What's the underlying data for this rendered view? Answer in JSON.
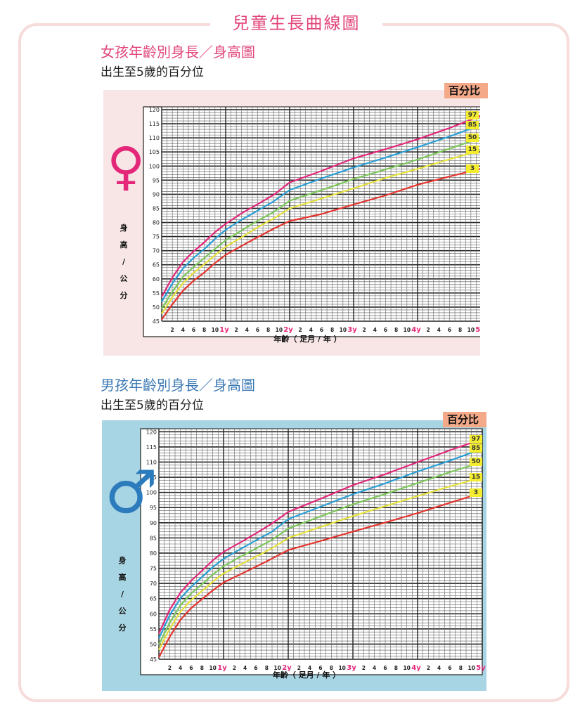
{
  "page_title": "兒童生長曲線圖",
  "charts": [
    {
      "id": "girls",
      "title": "女孩年齡別身長／身高圖",
      "subtitle": "出生至5歲的百分位",
      "sex_symbol": "♀",
      "ylabel": "身高／公分",
      "xlabel": "年齡（ 足月 / 年 ）",
      "percentile_header": "百分比",
      "colors": {
        "panel_bg": "#f8e6e6",
        "header_bg": "#f4a989",
        "symbol": "#e3287a",
        "title": "#e2467a"
      }
    },
    {
      "id": "boys",
      "title": "男孩年齡別身長／身高圖",
      "subtitle": "出生至5歲的百分位",
      "sex_symbol": "♂",
      "ylabel": "身高／公分",
      "xlabel": "年齡（ 足月 / 年 ）",
      "percentile_header": "百分比",
      "colors": {
        "panel_bg": "#a8d5e3",
        "header_bg": "#f4a989",
        "symbol": "#2b7bbd",
        "title": "#3a78b4"
      }
    }
  ],
  "chart_data": [
    {
      "type": "line",
      "title": "女孩年齡別身長／身高圖",
      "xlabel": "年齡（ 足月 / 年 ）",
      "ylabel": "身高／公分",
      "xlim": [
        0,
        60
      ],
      "ylim": [
        45,
        121
      ],
      "y_ticks": [
        45,
        50,
        55,
        60,
        65,
        70,
        75,
        80,
        85,
        90,
        95,
        100,
        105,
        110,
        115,
        120
      ],
      "x_tick_labels": [
        "2",
        "4",
        "6",
        "8",
        "10",
        "1y",
        "2",
        "4",
        "6",
        "8",
        "10",
        "2y",
        "2",
        "4",
        "6",
        "8",
        "10",
        "3y",
        "2",
        "4",
        "6",
        "8",
        "10",
        "4y",
        "2",
        "4",
        "6",
        "8",
        "10",
        "5y"
      ],
      "x": [
        0,
        2,
        4,
        6,
        8,
        10,
        12,
        15,
        18,
        21,
        24,
        30,
        36,
        42,
        48,
        54,
        60
      ],
      "series": [
        {
          "name": "97",
          "color": "#e3287a",
          "values": [
            53.7,
            60.5,
            66.0,
            69.8,
            73.0,
            76.6,
            79.5,
            83.3,
            86.5,
            89.8,
            94.2,
            98.3,
            102.7,
            106.0,
            109.5,
            113.5,
            117.9
          ]
        },
        {
          "name": "85",
          "color": "#2a9fd6",
          "values": [
            51.9,
            58.4,
            63.7,
            67.5,
            70.6,
            74.2,
            77.4,
            81.0,
            84.2,
            87.5,
            91.5,
            95.6,
            99.5,
            103.0,
            106.7,
            110.5,
            114.6
          ]
        },
        {
          "name": "50",
          "color": "#7cc75a",
          "values": [
            49.4,
            55.5,
            60.7,
            64.3,
            67.4,
            70.7,
            73.7,
            77.2,
            80.6,
            83.7,
            87.7,
            91.5,
            95.4,
            98.8,
            102.3,
            106.2,
            110.1
          ]
        },
        {
          "name": "15",
          "color": "#e6e23c",
          "values": [
            47.7,
            53.5,
            58.5,
            62.2,
            65.2,
            68.4,
            71.4,
            74.8,
            78.3,
            81.4,
            85.0,
            88.5,
            92.1,
            95.8,
            99.0,
            102.4,
            105.7
          ]
        },
        {
          "name": "3",
          "color": "#e5342e",
          "values": [
            45.6,
            51.0,
            55.8,
            59.4,
            62.3,
            65.6,
            68.5,
            71.7,
            74.8,
            77.8,
            80.5,
            83.0,
            86.4,
            89.6,
            93.4,
            96.3,
            99.1
          ]
        }
      ]
    },
    {
      "type": "line",
      "title": "男孩年齡別身長／身高圖",
      "xlabel": "年齡（ 足月 / 年 ）",
      "ylabel": "身高／公分",
      "xlim": [
        0,
        60
      ],
      "ylim": [
        45,
        121
      ],
      "y_ticks": [
        45,
        50,
        55,
        60,
        65,
        70,
        75,
        80,
        85,
        90,
        95,
        100,
        105,
        110,
        115,
        120
      ],
      "x_tick_labels": [
        "2",
        "4",
        "6",
        "8",
        "10",
        "1y",
        "2",
        "4",
        "6",
        "8",
        "10",
        "2y",
        "2",
        "4",
        "6",
        "8",
        "10",
        "3y",
        "2",
        "4",
        "6",
        "8",
        "10",
        "4y",
        "2",
        "4",
        "6",
        "8",
        "10",
        "5y"
      ],
      "x": [
        0,
        2,
        4,
        6,
        8,
        10,
        12,
        15,
        18,
        21,
        24,
        30,
        36,
        42,
        48,
        54,
        60
      ],
      "series": [
        {
          "name": "97",
          "color": "#e3287a",
          "values": [
            53.5,
            61.3,
            67.0,
            70.9,
            74.2,
            77.6,
            80.4,
            83.4,
            86.5,
            89.8,
            93.6,
            97.9,
            102.4,
            106.0,
            110.0,
            113.9,
            117.6
          ]
        },
        {
          "name": "85",
          "color": "#2a9fd6",
          "values": [
            51.9,
            59.5,
            65.1,
            68.9,
            72.1,
            75.4,
            78.1,
            81.2,
            84.2,
            87.1,
            91.2,
            95.3,
            99.4,
            103.0,
            106.9,
            110.5,
            114.4
          ]
        },
        {
          "name": "50",
          "color": "#7cc75a",
          "values": [
            49.9,
            57.0,
            62.8,
            66.7,
            69.7,
            72.9,
            75.7,
            78.7,
            81.5,
            84.4,
            88.1,
            92.1,
            96.1,
            99.5,
            103.1,
            106.7,
            110.0
          ]
        },
        {
          "name": "15",
          "color": "#e6e23c",
          "values": [
            48.1,
            55.0,
            60.7,
            64.5,
            67.5,
            70.6,
            73.3,
            76.1,
            78.8,
            81.6,
            85.0,
            88.6,
            92.2,
            95.5,
            98.8,
            102.0,
            105.0
          ]
        },
        {
          "name": "3",
          "color": "#e5342e",
          "values": [
            45.6,
            52.4,
            58.0,
            61.9,
            64.8,
            67.7,
            70.3,
            72.9,
            75.5,
            78.2,
            81.0,
            84.0,
            87.1,
            90.1,
            93.2,
            96.6,
            99.9
          ]
        }
      ]
    }
  ]
}
